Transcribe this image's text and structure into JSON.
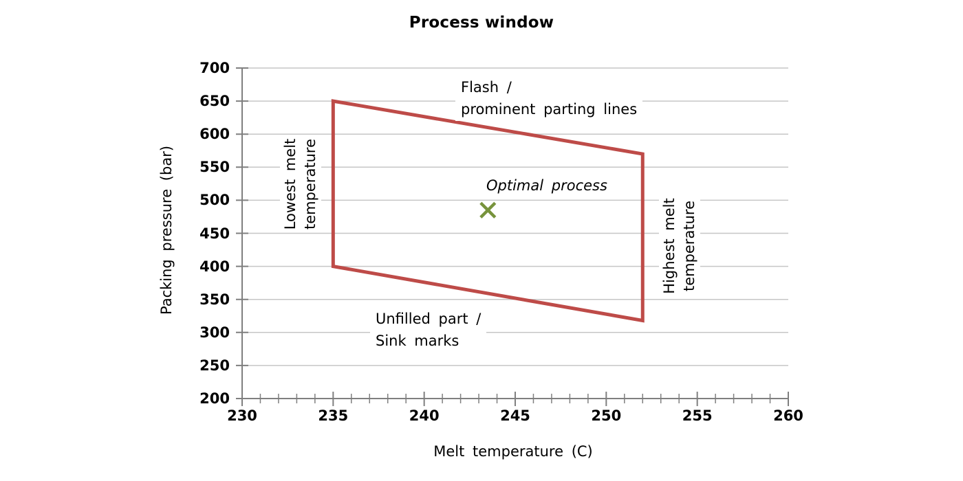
{
  "chart_data": {
    "type": "scatter",
    "title": "Process window",
    "xlabel": "Melt temperature  (C)",
    "ylabel": "Packing pressure  (bar)",
    "xlim": [
      230,
      260
    ],
    "ylim": [
      200,
      700
    ],
    "x_tick_labels": [
      230,
      235,
      240,
      245,
      250,
      255,
      260
    ],
    "x_minor_tick_step": 1,
    "y_tick_labels": [
      200,
      250,
      300,
      350,
      400,
      450,
      500,
      550,
      600,
      650,
      700
    ],
    "grid": "horizontal-only",
    "legend": "none",
    "colors": {
      "window_outline": "#BE4B48",
      "optimal_marker": "#77933C",
      "gridline": "#C6C6C6",
      "axis": "#7F7F7F",
      "text": "#000000"
    },
    "series": [
      {
        "name": "process-window-boundary",
        "type": "polygon-outline",
        "stroke_width": 5,
        "points": [
          [
            235,
            650
          ],
          [
            252,
            570
          ],
          [
            252,
            318
          ],
          [
            235,
            400
          ]
        ]
      },
      {
        "name": "optimal-process-point",
        "type": "scatter",
        "marker": "x",
        "points": [
          [
            243.5,
            485
          ]
        ]
      }
    ],
    "annotations": {
      "flash": {
        "line1": "Flash /",
        "line2": "prominent parting lines"
      },
      "unfilled": {
        "line1": "Unfilled part /",
        "line2": "Sink marks"
      },
      "lowest_melt": {
        "line1": "Lowest melt",
        "line2": "temperature"
      },
      "highest_melt": {
        "line1": "Highest melt",
        "line2": "temperature"
      },
      "optimal": {
        "label": "Optimal process"
      }
    }
  }
}
